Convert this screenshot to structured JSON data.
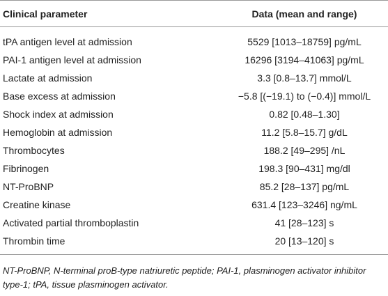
{
  "table": {
    "header": [
      "Clinical parameter",
      "Data (mean and range)"
    ],
    "rows": [
      [
        "tPA antigen level at admission",
        "5529 [1013–18759] pg/mL"
      ],
      [
        "PAI-1 antigen level at admission",
        "16296 [3194–41063] pg/mL"
      ],
      [
        "Lactate at admission",
        "3.3 [0.8–13.7] mmol/L"
      ],
      [
        "Base excess at admission",
        "−5.8 [(−19.1) to (−0.4)] mmol/L"
      ],
      [
        "Shock index at admission",
        "0.82 [0.48–1.30]"
      ],
      [
        "Hemoglobin at admission",
        "11.2 [5.8–15.7] g/dL"
      ],
      [
        "Thrombocytes",
        "188.2 [49–295] /nL"
      ],
      [
        "Fibrinogen",
        "198.3 [90–431] mg/dl"
      ],
      [
        "NT-ProBNP",
        "85.2 [28–137] pg/mL"
      ],
      [
        "Creatine kinase",
        "631.4 [123–3246] ng/mL"
      ],
      [
        "Activated partial thromboplastin",
        "41 [28–123] s"
      ],
      [
        "Thrombin time",
        "20 [13–120] s"
      ]
    ]
  },
  "footnote": "NT-ProBNP, N-terminal proB-type natriuretic peptide; PAI-1, plasminogen activator inhibitor type-1; tPA, tissue plasminogen activator."
}
